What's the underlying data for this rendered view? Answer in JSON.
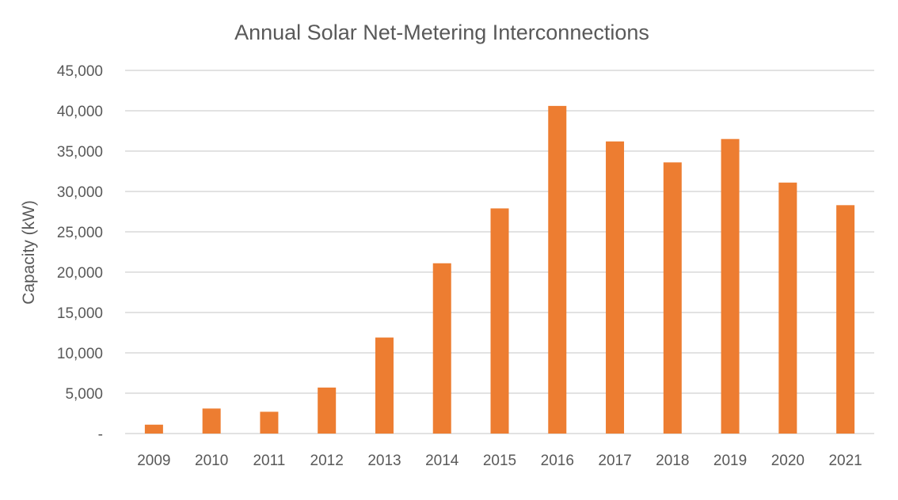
{
  "chart_data": {
    "type": "bar",
    "title": "Annual Solar Net-Metering Interconnections",
    "xlabel": "",
    "ylabel": "Capacity (kW)",
    "categories": [
      "2009",
      "2010",
      "2011",
      "2012",
      "2013",
      "2014",
      "2015",
      "2016",
      "2017",
      "2018",
      "2019",
      "2020",
      "2021"
    ],
    "values": [
      1100,
      3100,
      2700,
      5700,
      11900,
      21100,
      27900,
      40600,
      36200,
      33600,
      36500,
      31100,
      28300
    ],
    "ylim": [
      0,
      45000
    ],
    "yticks": [
      0,
      5000,
      10000,
      15000,
      20000,
      25000,
      30000,
      35000,
      40000,
      45000
    ],
    "ytick_labels": [
      "-",
      "5,000",
      "10,000",
      "15,000",
      "20,000",
      "25,000",
      "30,000",
      "35,000",
      "40,000",
      "45,000"
    ],
    "grid": true,
    "legend": "none",
    "colors": {
      "bar": "#ED7D31",
      "grid": "#D9D9D9",
      "text": "#595959"
    }
  }
}
